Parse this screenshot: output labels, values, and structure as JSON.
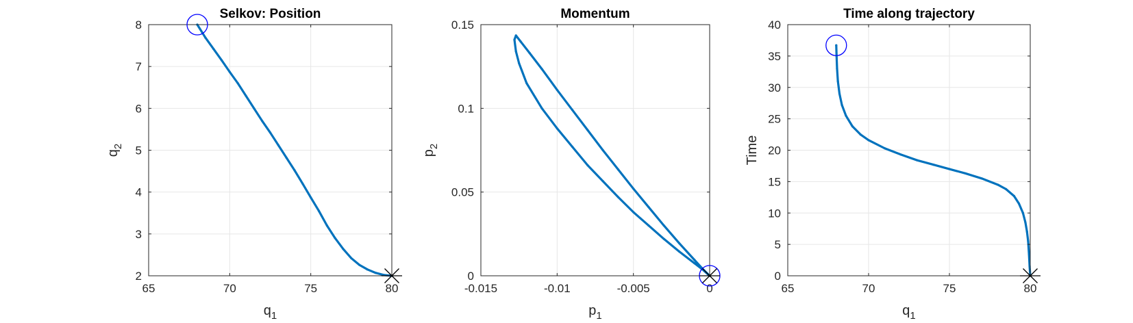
{
  "chart_data": [
    {
      "type": "line",
      "title": "Selkov: Position",
      "xlabel": {
        "base": "q",
        "sub": "1"
      },
      "ylabel": {
        "base": "q",
        "sub": "2"
      },
      "xlim": [
        65,
        80
      ],
      "ylim": [
        2,
        8
      ],
      "xticks": [
        65,
        70,
        75,
        80
      ],
      "xtick_labels": [
        "65",
        "70",
        "75",
        "80"
      ],
      "yticks": [
        2,
        3,
        4,
        5,
        6,
        7,
        8
      ],
      "ytick_labels": [
        "2",
        "3",
        "4",
        "5",
        "6",
        "7",
        "8"
      ],
      "grid": true,
      "line_color": "#0072BD",
      "series": [
        {
          "x": [
            68.0,
            68.5,
            69.0,
            69.5,
            70.0,
            70.5,
            71.0,
            71.5,
            72.0,
            72.5,
            73.0,
            73.5,
            74.0,
            74.5,
            75.0,
            75.5,
            76.0,
            76.5,
            77.0,
            77.5,
            78.0,
            78.5,
            79.0,
            79.5,
            80.0
          ],
          "y": [
            8.0,
            7.69,
            7.42,
            7.15,
            6.87,
            6.6,
            6.3,
            6.0,
            5.7,
            5.42,
            5.12,
            4.82,
            4.52,
            4.2,
            3.87,
            3.55,
            3.2,
            2.9,
            2.64,
            2.42,
            2.26,
            2.15,
            2.07,
            2.02,
            2.0
          ]
        }
      ],
      "markers": [
        {
          "shape": "circle",
          "x": 68.0,
          "y": 8.0,
          "color": "#0000FF"
        },
        {
          "shape": "asterisk",
          "x": 80.0,
          "y": 2.0,
          "color": "#000000"
        }
      ]
    },
    {
      "type": "line",
      "title": "Momentum",
      "xlabel": {
        "base": "p",
        "sub": "1"
      },
      "ylabel": {
        "base": "p",
        "sub": "2"
      },
      "xlim": [
        -0.015,
        0
      ],
      "ylim": [
        0,
        0.15
      ],
      "xticks": [
        -0.015,
        -0.01,
        -0.005,
        0
      ],
      "xtick_labels": [
        "-0.015",
        "-0.01",
        "-0.005",
        "0"
      ],
      "yticks": [
        0,
        0.05,
        0.1,
        0.15
      ],
      "ytick_labels": [
        "0",
        "0.05",
        "0.1",
        "0.15"
      ],
      "grid": true,
      "line_color": "#0072BD",
      "series": [
        {
          "x": [
            0,
            -0.0005,
            -0.001,
            -0.002,
            -0.003,
            -0.004,
            -0.005,
            -0.006,
            -0.007,
            -0.008,
            -0.009,
            -0.01,
            -0.011,
            -0.0118,
            -0.0124,
            -0.0127,
            -0.0128,
            -0.0127,
            -0.0125,
            -0.012,
            -0.011,
            -0.01,
            -0.009,
            -0.008,
            -0.007,
            -0.006,
            -0.005,
            -0.004,
            -0.003,
            -0.002,
            -0.001,
            -0.0005,
            0
          ],
          "y": [
            0,
            0.0045,
            0.0095,
            0.0195,
            0.03,
            0.041,
            0.052,
            0.0635,
            0.075,
            0.087,
            0.099,
            0.111,
            0.1235,
            0.133,
            0.14,
            0.1435,
            0.141,
            0.134,
            0.127,
            0.115,
            0.1,
            0.088,
            0.077,
            0.066,
            0.0565,
            0.047,
            0.038,
            0.03,
            0.022,
            0.0145,
            0.0075,
            0.004,
            0
          ]
        }
      ],
      "markers": [
        {
          "shape": "circle",
          "x": 0,
          "y": 0,
          "color": "#0000FF"
        },
        {
          "shape": "asterisk",
          "x": 0,
          "y": 0,
          "color": "#000000"
        }
      ]
    },
    {
      "type": "line",
      "title": "Time along trajectory",
      "xlabel": {
        "base": "q",
        "sub": "1"
      },
      "ylabel": {
        "base": "Time",
        "sub": ""
      },
      "xlim": [
        65,
        80
      ],
      "ylim": [
        0,
        40
      ],
      "xticks": [
        65,
        70,
        75,
        80
      ],
      "xtick_labels": [
        "65",
        "70",
        "75",
        "80"
      ],
      "yticks": [
        0,
        5,
        10,
        15,
        20,
        25,
        30,
        35,
        40
      ],
      "ytick_labels": [
        "0",
        "5",
        "10",
        "15",
        "20",
        "25",
        "30",
        "35",
        "40"
      ],
      "grid": true,
      "line_color": "#0072BD",
      "series": [
        {
          "x": [
            68.0,
            68.02,
            68.05,
            68.1,
            68.2,
            68.35,
            68.6,
            69.0,
            69.5,
            70.0,
            71.0,
            72.0,
            73.0,
            74.0,
            75.0,
            76.0,
            77.0,
            78.0,
            78.5,
            79.0,
            79.3,
            79.55,
            79.7,
            79.8,
            79.87,
            79.92,
            79.96,
            80.0
          ],
          "y": [
            36.7,
            35.0,
            33.0,
            31.0,
            29.0,
            27.2,
            25.5,
            23.8,
            22.5,
            21.6,
            20.3,
            19.3,
            18.4,
            17.7,
            17.0,
            16.3,
            15.5,
            14.5,
            13.8,
            12.7,
            11.5,
            10.0,
            8.5,
            7.0,
            5.5,
            3.5,
            1.5,
            0.0
          ]
        }
      ],
      "markers": [
        {
          "shape": "circle",
          "x": 68.0,
          "y": 36.7,
          "color": "#0000FF"
        },
        {
          "shape": "asterisk",
          "x": 80.0,
          "y": 0.0,
          "color": "#000000"
        }
      ]
    }
  ]
}
